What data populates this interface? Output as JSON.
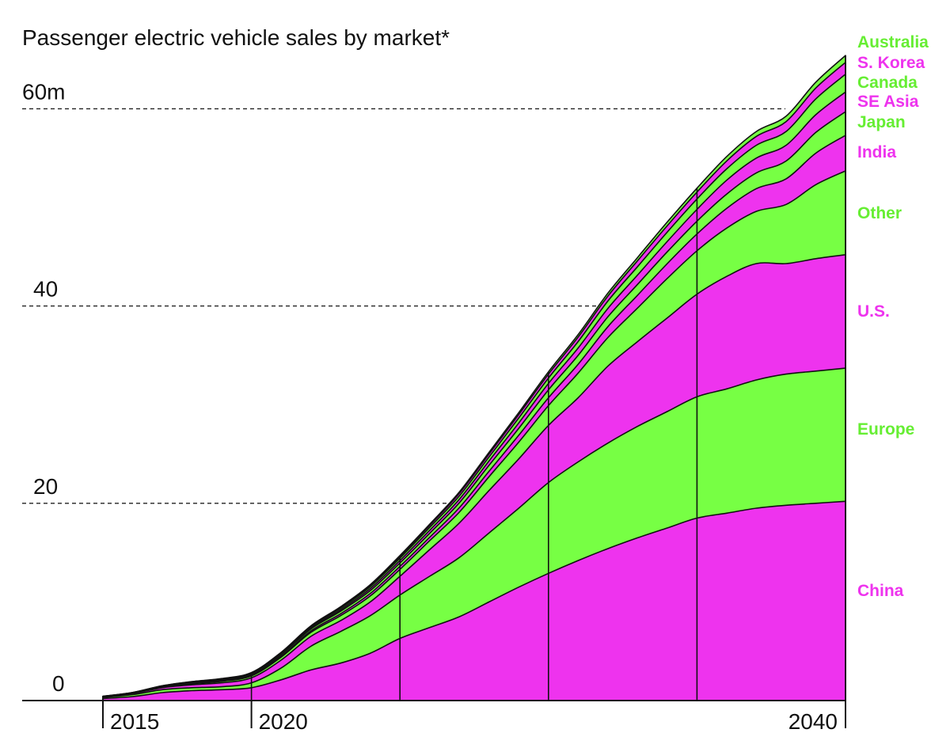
{
  "chart_data": {
    "type": "area",
    "stacked": true,
    "title": "Passenger electric vehicle sales by market*",
    "ylabel": "",
    "xlabel": "",
    "ylim": [
      0,
      66
    ],
    "xlim": [
      2015,
      2040
    ],
    "y_ticks": [
      {
        "value": 0,
        "label": "0"
      },
      {
        "value": 20,
        "label": "20"
      },
      {
        "value": 40,
        "label": "40"
      },
      {
        "value": 60,
        "label": "60m"
      }
    ],
    "x_ticks": [
      {
        "value": 2015,
        "label": "2015"
      },
      {
        "value": 2020,
        "label": "2020"
      },
      {
        "value": 2040,
        "label": "2040"
      }
    ],
    "vertical_markers": [
      2020,
      2025,
      2030,
      2035,
      2040
    ],
    "x": [
      2015,
      2016,
      2017,
      2018,
      2019,
      2020,
      2021,
      2022,
      2023,
      2024,
      2025,
      2026,
      2027,
      2028,
      2029,
      2030,
      2031,
      2032,
      2033,
      2034,
      2035,
      2036,
      2037,
      2038,
      2039,
      2040
    ],
    "series": [
      {
        "name": "China",
        "color": "#ee33ee",
        "values": [
          0.2,
          0.4,
          0.8,
          1.0,
          1.1,
          1.3,
          2.1,
          3.1,
          3.8,
          4.8,
          6.3,
          7.4,
          8.5,
          10.0,
          11.5,
          12.9,
          14.2,
          15.4,
          16.5,
          17.5,
          18.5,
          19.0,
          19.5,
          19.8,
          20.0,
          20.2
        ]
      },
      {
        "name": "Europe",
        "color": "#77ff44",
        "values": [
          0.1,
          0.2,
          0.3,
          0.3,
          0.3,
          0.5,
          1.2,
          2.4,
          3.2,
          3.8,
          4.4,
          5.2,
          6.0,
          7.0,
          8.0,
          9.2,
          10.0,
          10.7,
          11.3,
          11.8,
          12.3,
          12.6,
          13.0,
          13.3,
          13.4,
          13.5
        ]
      },
      {
        "name": "U.S.",
        "color": "#ee33ee",
        "values": [
          0.05,
          0.1,
          0.2,
          0.3,
          0.4,
          0.5,
          0.8,
          1.0,
          1.1,
          1.4,
          1.9,
          2.7,
          3.5,
          4.3,
          5.0,
          5.8,
          6.5,
          7.8,
          8.6,
          9.5,
          10.4,
          11.4,
          11.8,
          11.2,
          11.4,
          11.5
        ]
      },
      {
        "name": "Other",
        "color": "#77ff44",
        "values": [
          0.02,
          0.03,
          0.05,
          0.1,
          0.15,
          0.2,
          0.3,
          0.4,
          0.5,
          0.6,
          0.7,
          0.9,
          1.1,
          1.4,
          1.7,
          2.0,
          2.5,
          2.9,
          3.4,
          4.0,
          4.4,
          4.9,
          5.3,
          6.0,
          7.5,
          8.5
        ]
      },
      {
        "name": "India",
        "color": "#ee33ee",
        "values": [
          0.01,
          0.02,
          0.03,
          0.05,
          0.05,
          0.07,
          0.1,
          0.15,
          0.2,
          0.25,
          0.3,
          0.35,
          0.45,
          0.55,
          0.7,
          0.8,
          0.9,
          1.1,
          1.3,
          1.5,
          1.7,
          2.0,
          2.3,
          2.6,
          3.2,
          3.6
        ]
      },
      {
        "name": "Japan",
        "color": "#77ff44",
        "values": [
          0.02,
          0.03,
          0.05,
          0.08,
          0.1,
          0.1,
          0.15,
          0.2,
          0.25,
          0.3,
          0.35,
          0.4,
          0.5,
          0.6,
          0.7,
          0.8,
          0.9,
          1.0,
          1.1,
          1.2,
          1.3,
          1.45,
          1.6,
          1.8,
          2.1,
          2.4
        ]
      },
      {
        "name": "SE Asia",
        "color": "#ee33ee",
        "values": [
          0.01,
          0.01,
          0.02,
          0.03,
          0.04,
          0.05,
          0.08,
          0.1,
          0.15,
          0.2,
          0.25,
          0.3,
          0.35,
          0.45,
          0.55,
          0.65,
          0.75,
          0.85,
          0.95,
          1.05,
          1.2,
          1.4,
          1.5,
          1.6,
          1.8,
          2.0
        ]
      },
      {
        "name": "Canada",
        "color": "#77ff44",
        "values": [
          0.01,
          0.01,
          0.02,
          0.03,
          0.04,
          0.05,
          0.07,
          0.1,
          0.15,
          0.2,
          0.25,
          0.3,
          0.35,
          0.4,
          0.5,
          0.55,
          0.65,
          0.75,
          0.85,
          0.95,
          1.05,
          1.15,
          1.3,
          1.4,
          1.6,
          1.8
        ]
      },
      {
        "name": "S. Korea",
        "color": "#ee33ee",
        "values": [
          0.01,
          0.01,
          0.02,
          0.02,
          0.03,
          0.04,
          0.05,
          0.07,
          0.1,
          0.12,
          0.15,
          0.2,
          0.25,
          0.3,
          0.35,
          0.4,
          0.45,
          0.5,
          0.6,
          0.65,
          0.7,
          0.8,
          0.9,
          1.0,
          1.1,
          1.2
        ]
      },
      {
        "name": "Australia",
        "color": "#77ff44",
        "values": [
          0.01,
          0.01,
          0.01,
          0.02,
          0.02,
          0.03,
          0.04,
          0.05,
          0.06,
          0.08,
          0.1,
          0.12,
          0.15,
          0.18,
          0.2,
          0.23,
          0.26,
          0.3,
          0.33,
          0.37,
          0.4,
          0.45,
          0.5,
          0.55,
          0.6,
          0.7
        ]
      }
    ]
  }
}
